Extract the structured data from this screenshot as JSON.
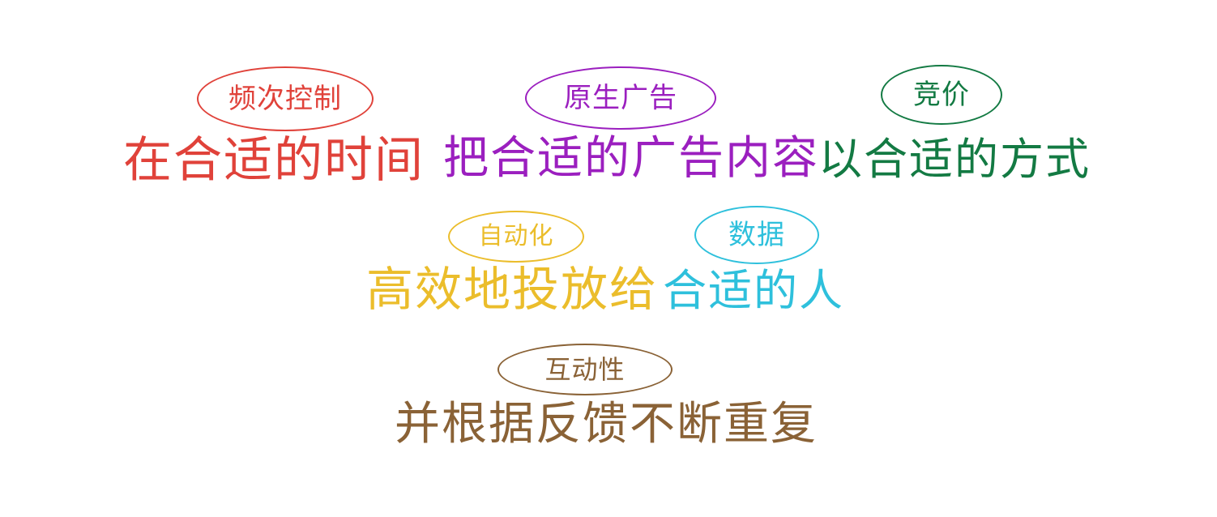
{
  "lines": [
    {
      "segments": [
        {
          "text": "在合适的时间",
          "color": "#e0423a"
        },
        {
          "text": "把合适的广告内容",
          "color": "#9b1fbf"
        },
        {
          "text": "以合适的方式",
          "color": "#137a43"
        }
      ]
    },
    {
      "segments": [
        {
          "text": "高效地投放给",
          "color": "#ebbd2b"
        },
        {
          "text": "合适的人",
          "color": "#2ec0dc"
        }
      ]
    },
    {
      "segments": [
        {
          "text": "并根据反馈不断重复",
          "color": "#8a6236"
        }
      ]
    }
  ],
  "tags": [
    {
      "text": "频次控制",
      "color": "#e0423a"
    },
    {
      "text": "原生广告",
      "color": "#9b1fbf"
    },
    {
      "text": "竞价",
      "color": "#137a43"
    },
    {
      "text": "自动化",
      "color": "#ebbd2b"
    },
    {
      "text": "数据",
      "color": "#2ec0dc"
    },
    {
      "text": "互动性",
      "color": "#8a6236"
    }
  ]
}
